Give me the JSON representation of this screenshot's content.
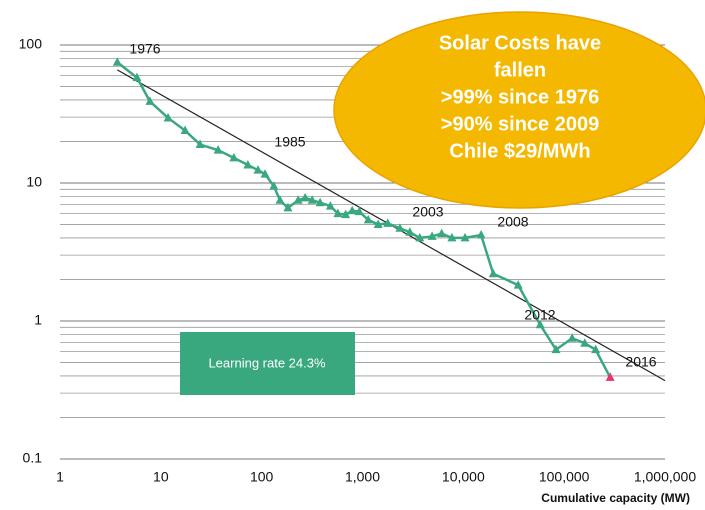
{
  "chart_data": {
    "type": "line",
    "x_label": "Cumulative capacity (MW)",
    "log_x": true,
    "log_y": true,
    "grid": "minor",
    "xlim": [
      1,
      1000000
    ],
    "xticks": [
      1,
      10,
      100,
      {
        "value": 1000,
        "label": "1,000"
      },
      {
        "value": 10000,
        "label": "10,000"
      },
      {
        "value": 100000,
        "label": "100,000"
      },
      {
        "value": 1000000,
        "label": "1,000,000"
      }
    ],
    "ylim": [
      0.1,
      100
    ],
    "yticks": [
      0.1,
      1,
      10,
      100
    ],
    "series": [
      {
        "color": "#3aa87f",
        "highlight_color": "#e8336b",
        "x": [
          3.7,
          5.8,
          7.8,
          11.8,
          17.4,
          24.5,
          37,
          53,
          73,
          92,
          108,
          132,
          152,
          182,
          230,
          270,
          317,
          380,
          480,
          570,
          680,
          790,
          930,
          1140,
          1430,
          1780,
          2350,
          2950,
          3700,
          4900,
          6100,
          7700,
          10400,
          15000,
          19800,
          35000,
          57800,
          83000,
          120000,
          160000,
          205000,
          286000
        ],
        "values": [
          75,
          58,
          39,
          29.6,
          24,
          19,
          17.3,
          15.2,
          13.5,
          12.4,
          11.6,
          9.5,
          7.5,
          6.6,
          7.5,
          7.8,
          7.5,
          7.2,
          6.8,
          6,
          5.9,
          6.3,
          6.2,
          5.4,
          5,
          5.1,
          4.7,
          4.4,
          4,
          4.1,
          4.3,
          4,
          4,
          4.2,
          2.2,
          1.82,
          0.94,
          0.62,
          0.75,
          0.69,
          0.62,
          0.39
        ]
      }
    ],
    "trendline": {
      "color": "#222",
      "x": [
        3.7,
        1000000
      ],
      "values": [
        66,
        0.37
      ]
    },
    "annotations": [
      "1976",
      "1985",
      "2003",
      "2008",
      "2012",
      "2016"
    ],
    "callout": [
      "Solar Costs have",
      "fallen",
      ">99% since 1976",
      ">90% since 2009",
      "Chile $29/MWh"
    ],
    "box_label": "Learning rate 24.3%"
  }
}
